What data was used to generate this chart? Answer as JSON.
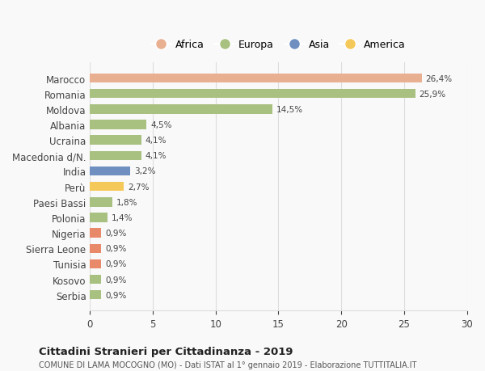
{
  "countries": [
    "Serbia",
    "Kosovo",
    "Tunisia",
    "Sierra Leone",
    "Nigeria",
    "Polonia",
    "Paesi Bassi",
    "Perù",
    "India",
    "Macedonia d/N.",
    "Ucraina",
    "Albania",
    "Moldova",
    "Romania",
    "Marocco"
  ],
  "values": [
    0.9,
    0.9,
    0.9,
    0.9,
    0.9,
    1.4,
    1.8,
    2.7,
    3.2,
    4.1,
    4.1,
    4.5,
    14.5,
    25.9,
    26.4
  ],
  "colors": [
    "#a8c080",
    "#a8c080",
    "#e8896a",
    "#e8896a",
    "#e8896a",
    "#a8c080",
    "#a8c080",
    "#f5c85a",
    "#6e8fc0",
    "#a8c080",
    "#a8c080",
    "#a8c080",
    "#a8c080",
    "#a8c080",
    "#e8b090"
  ],
  "labels": [
    "0,9%",
    "0,9%",
    "0,9%",
    "0,9%",
    "0,9%",
    "1,4%",
    "1,8%",
    "2,7%",
    "3,2%",
    "4,1%",
    "4,1%",
    "4,5%",
    "14,5%",
    "25,9%",
    "26,4%"
  ],
  "legend_names": [
    "Africa",
    "Europa",
    "Asia",
    "America"
  ],
  "legend_colors": [
    "#e8b090",
    "#a8c080",
    "#6e8fc0",
    "#f5c85a"
  ],
  "xlim": [
    0,
    30
  ],
  "xticks": [
    0,
    5,
    10,
    15,
    20,
    25,
    30
  ],
  "title1": "Cittadini Stranieri per Cittadinanza - 2019",
  "title2": "COMUNE DI LAMA MOCOGNO (MO) - Dati ISTAT al 1° gennaio 2019 - Elaborazione TUTTITALIA.IT",
  "bg_color": "#f9f9f9",
  "grid_color": "#dddddd"
}
